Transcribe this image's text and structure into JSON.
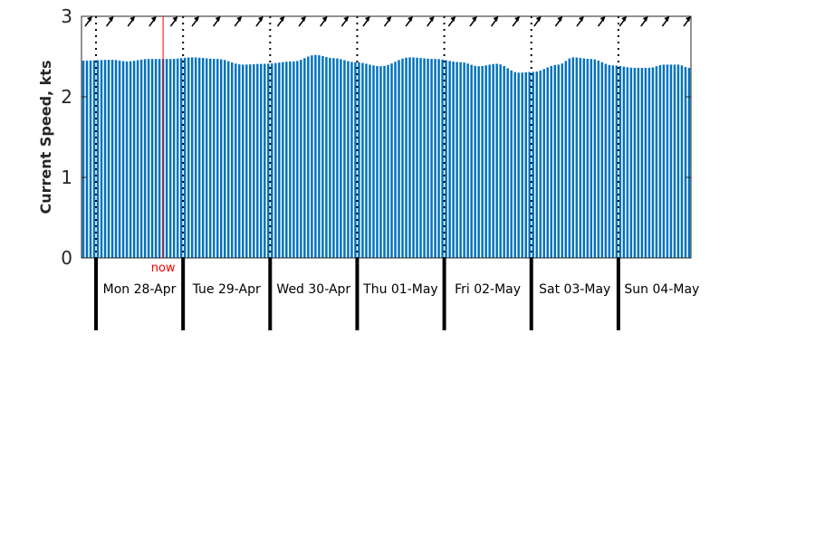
{
  "chart_data": {
    "type": "bar",
    "ylabel": "Current Speed, kts",
    "ylim": [
      0,
      3
    ],
    "yticks": [
      0,
      1,
      2,
      3
    ],
    "x_start": "2025-04-27T20:00",
    "x_end": "2025-05-04T19:00",
    "x_step_hours": 1,
    "days": [
      {
        "label": "Mon 28-Apr",
        "start": "2025-04-28T00:00"
      },
      {
        "label": "Tue 29-Apr",
        "start": "2025-04-29T00:00"
      },
      {
        "label": "Wed 30-Apr",
        "start": "2025-04-30T00:00"
      },
      {
        "label": "Thu 01-May",
        "start": "2025-05-01T00:00"
      },
      {
        "label": "Fri 02-May",
        "start": "2025-05-02T00:00"
      },
      {
        "label": "Sat 03-May",
        "start": "2025-05-03T00:00"
      },
      {
        "label": "Sun 04-May",
        "start": "2025-05-04T00:00"
      }
    ],
    "now": {
      "label": "now",
      "time": "2025-04-28T18:00",
      "color": "#ff0000"
    },
    "bar_color": "#0072bd",
    "direction_arrows": "north-east arrows along top edge",
    "curve_anchors": [
      {
        "t": "2025-04-27T20:00",
        "v": 2.45
      },
      {
        "t": "2025-04-28T04:00",
        "v": 2.46
      },
      {
        "t": "2025-04-28T08:00",
        "v": 2.44
      },
      {
        "t": "2025-04-28T14:00",
        "v": 2.47
      },
      {
        "t": "2025-04-28T20:00",
        "v": 2.47
      },
      {
        "t": "2025-04-29T02:00",
        "v": 2.49
      },
      {
        "t": "2025-04-29T09:00",
        "v": 2.47
      },
      {
        "t": "2025-04-29T16:00",
        "v": 2.4
      },
      {
        "t": "2025-04-29T22:00",
        "v": 2.41
      },
      {
        "t": "2025-04-30T06:00",
        "v": 2.44
      },
      {
        "t": "2025-04-30T12:00",
        "v": 2.52
      },
      {
        "t": "2025-04-30T17:00",
        "v": 2.48
      },
      {
        "t": "2025-04-30T23:00",
        "v": 2.43
      },
      {
        "t": "2025-05-01T06:00",
        "v": 2.38
      },
      {
        "t": "2025-05-01T14:00",
        "v": 2.49
      },
      {
        "t": "2025-05-01T21:00",
        "v": 2.47
      },
      {
        "t": "2025-05-02T04:00",
        "v": 2.43
      },
      {
        "t": "2025-05-02T09:00",
        "v": 2.38
      },
      {
        "t": "2025-05-02T14:00",
        "v": 2.41
      },
      {
        "t": "2025-05-02T20:00",
        "v": 2.3
      },
      {
        "t": "2025-05-03T00:00",
        "v": 2.31
      },
      {
        "t": "2025-05-03T07:00",
        "v": 2.4
      },
      {
        "t": "2025-05-03T11:00",
        "v": 2.49
      },
      {
        "t": "2025-05-03T16:00",
        "v": 2.47
      },
      {
        "t": "2025-05-03T22:00",
        "v": 2.39
      },
      {
        "t": "2025-05-04T04:00",
        "v": 2.36
      },
      {
        "t": "2025-05-04T08:00",
        "v": 2.36
      },
      {
        "t": "2025-05-04T12:00",
        "v": 2.4
      },
      {
        "t": "2025-05-04T16:00",
        "v": 2.4
      },
      {
        "t": "2025-05-04T19:00",
        "v": 2.36
      }
    ]
  }
}
